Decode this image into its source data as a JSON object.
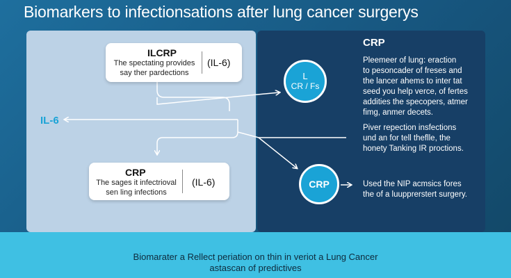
{
  "title": "Biomarkers to infectionsations after lung cancer surgerys",
  "left": {
    "top_box": {
      "title": "ILCRP",
      "desc_lines": [
        "The spectating provides",
        "say ther pardections"
      ],
      "tag": "(IL-6)"
    },
    "side_label": "IL-6",
    "bottom_box": {
      "title": "CRP",
      "desc_lines": [
        "The sages it infectrioval",
        "sen ling infections"
      ],
      "tag": "(IL-6)"
    }
  },
  "right": {
    "heading": "CRP",
    "circle_top": {
      "line1": "L",
      "line2": "CR / Fs"
    },
    "circle_bottom": {
      "label": "CRP"
    },
    "para1_lines": [
      "Pleemeer of lung: eraction",
      "to pesoncader of freses and",
      "the lancer ahems to inter tat",
      "seed you help verce, of fertes",
      "addities the specopers, atmer",
      "fimg, anmer decets."
    ],
    "para2_lines": [
      "Piver repection insfections",
      "und an for tell theflle, the",
      "honety Tanking IR proctions."
    ],
    "para3_lines": [
      "Used the NIP acmsics fores",
      "the of a luupprerstert surgery."
    ]
  },
  "footer": {
    "line1": "Biomarater a Rellect periation on thin in veriot a Lung Cancer",
    "line2": "astascan of predictives"
  },
  "colors": {
    "background": "#17567f",
    "left_panel": "#bcd2e6",
    "right_panel": "#173f66",
    "accent": "#1aa3d6",
    "footer_band": "#3fc0e3"
  }
}
